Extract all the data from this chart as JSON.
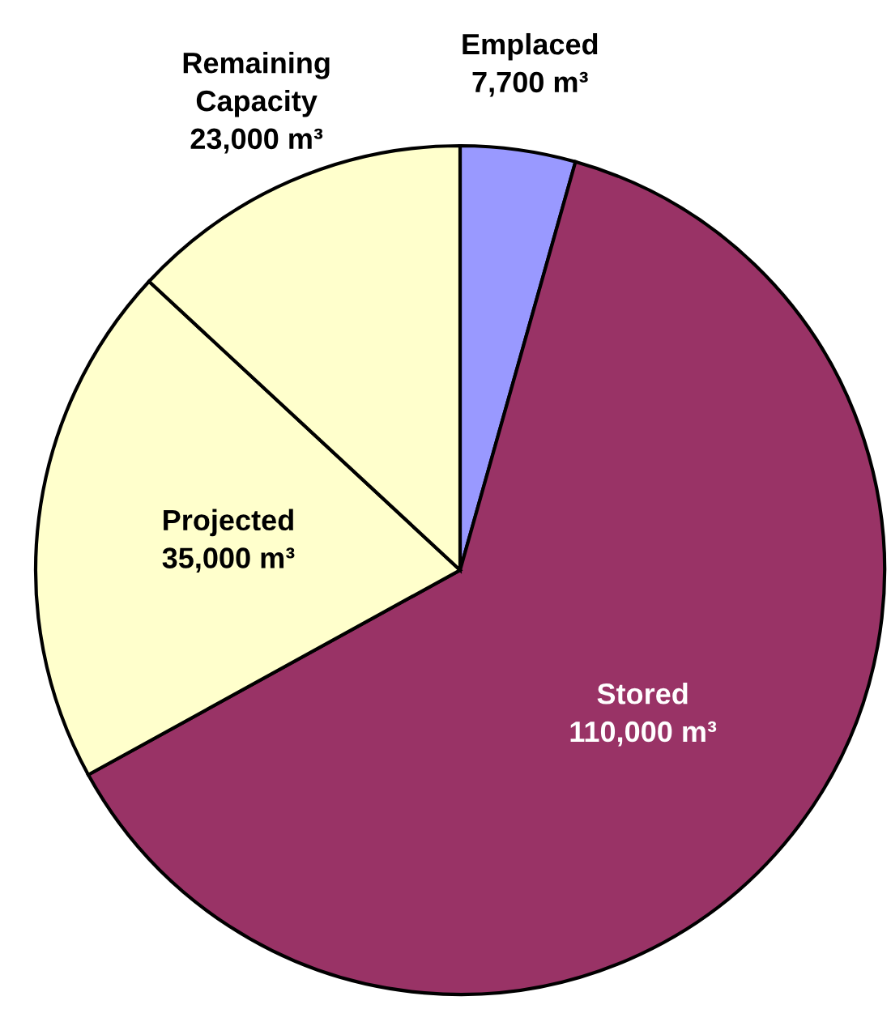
{
  "chart_data": {
    "type": "pie",
    "categories": [
      "Emplaced",
      "Stored",
      "Projected",
      "Remaining Capacity"
    ],
    "values": [
      7700,
      110000,
      35000,
      23000
    ],
    "value_labels": [
      "7,700 m³",
      "110,000 m³",
      "35,000 m³",
      "23,000 m³"
    ],
    "colors": [
      "#9999ff",
      "#993366",
      "#ffffcc",
      "#ffffcc"
    ]
  }
}
